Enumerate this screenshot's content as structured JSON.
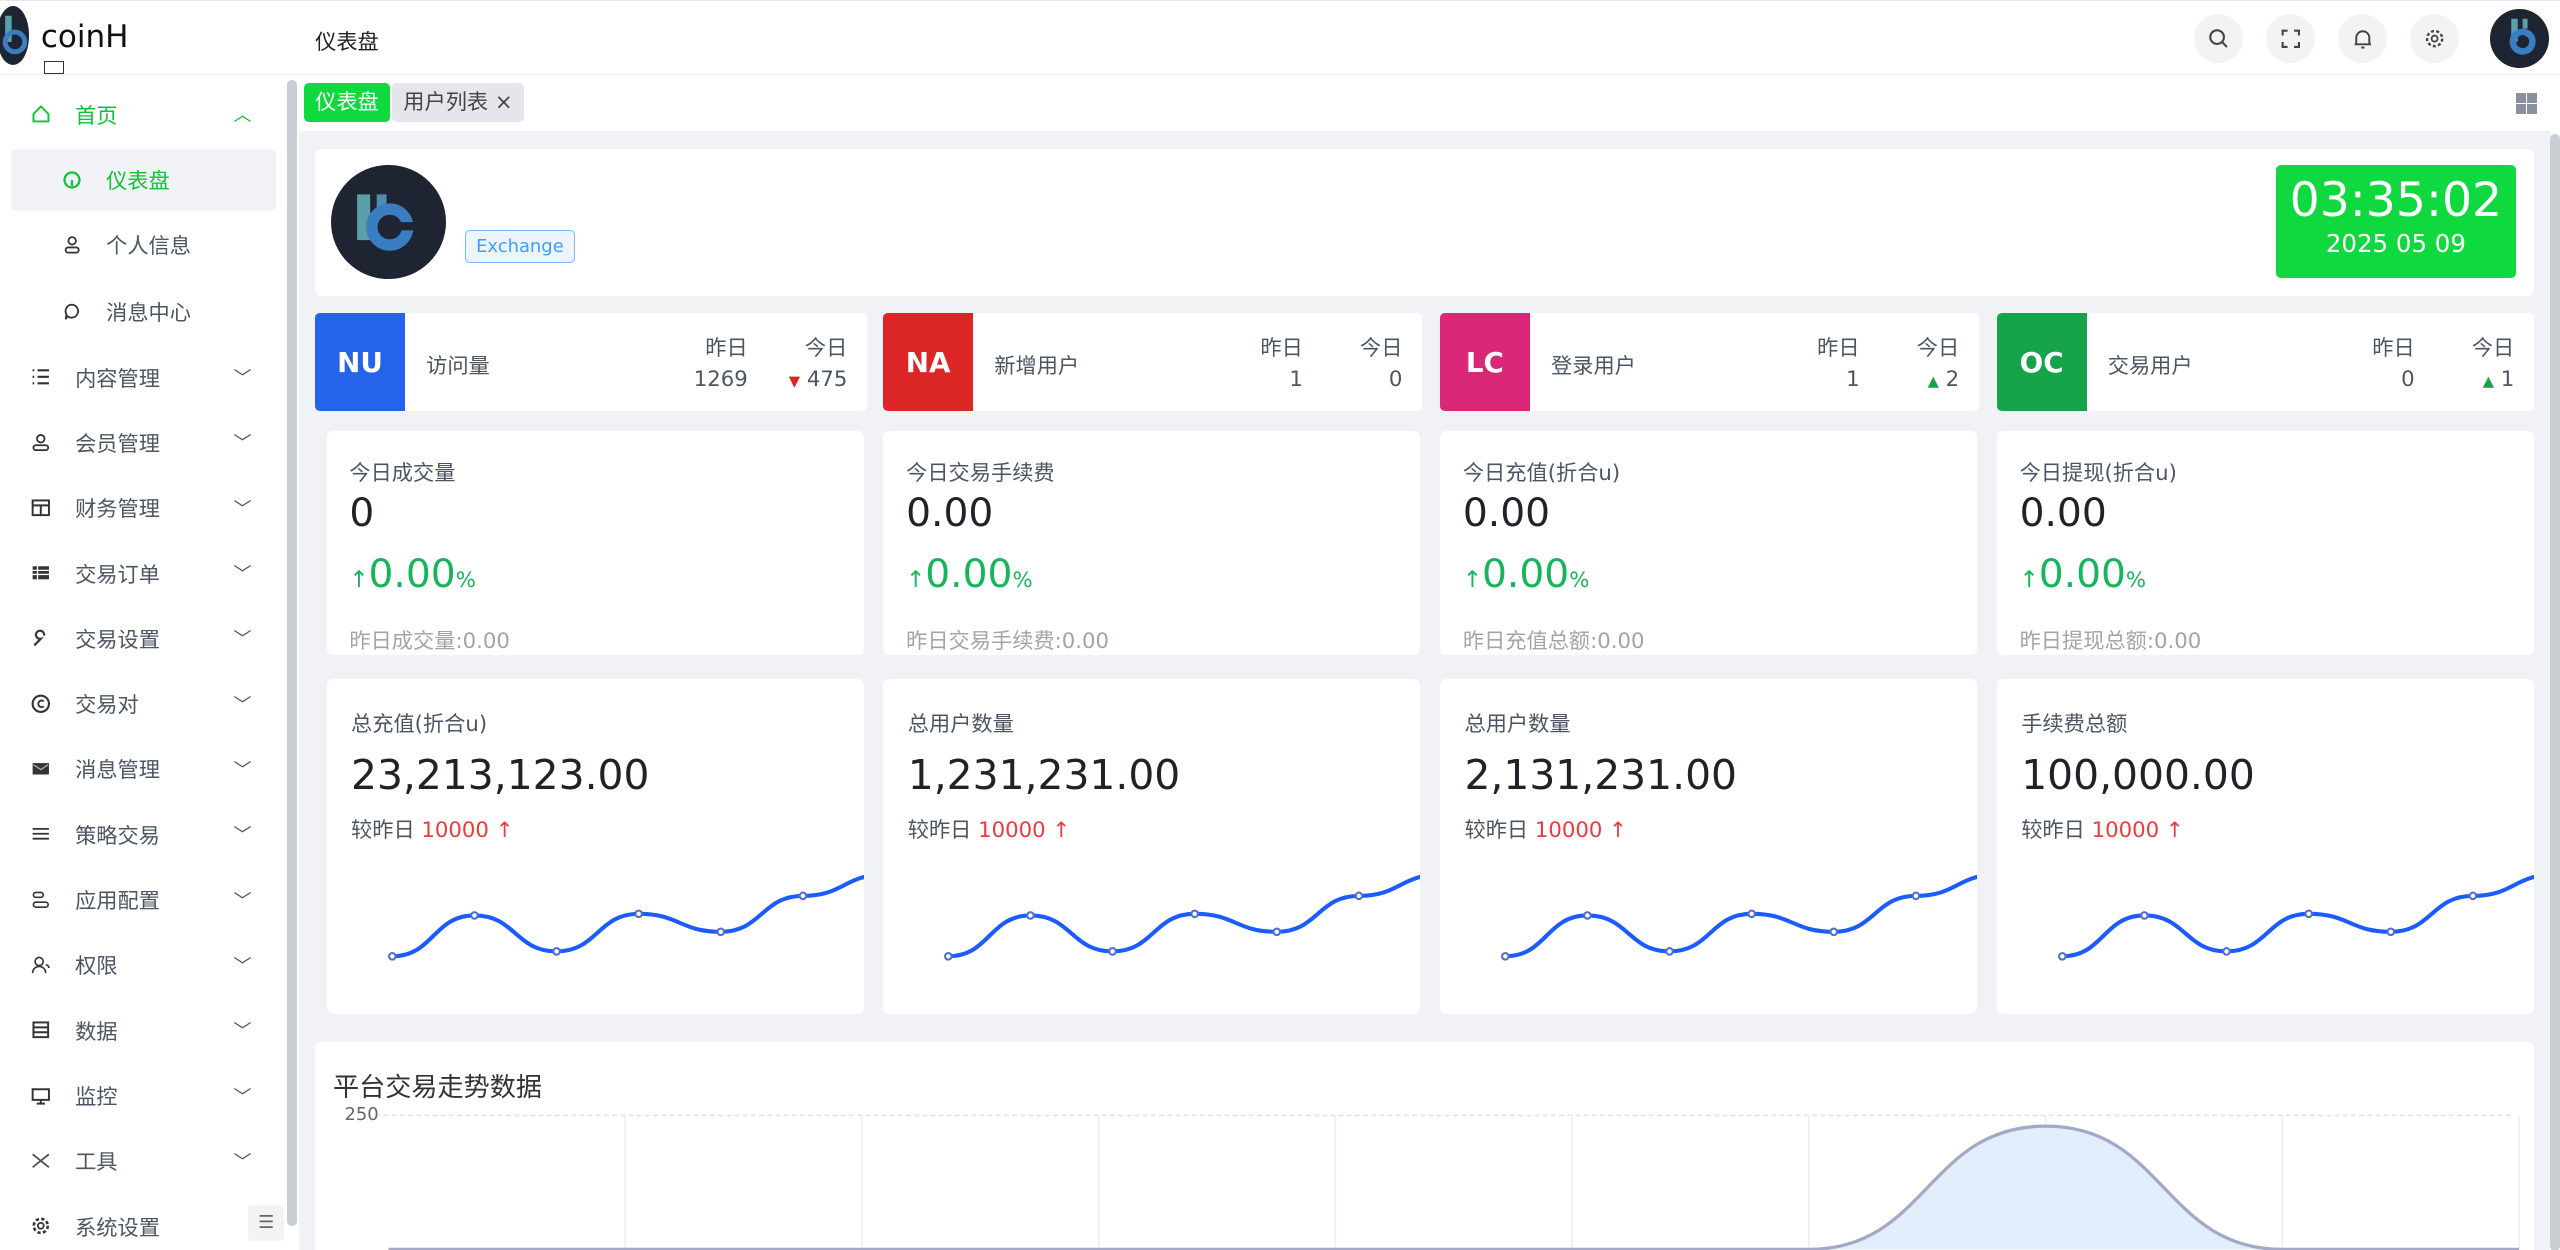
{
  "app": {
    "name": "coinH",
    "page_title": "仪表盘"
  },
  "header": {
    "icons": [
      "search-icon",
      "fullscreen-icon",
      "bell-icon",
      "gear-icon"
    ]
  },
  "sidebar": {
    "items": [
      {
        "label": "首页",
        "icon": "home-icon",
        "expanded": true,
        "children": [
          {
            "label": "仪表盘",
            "icon": "dashboard-icon",
            "active": true
          },
          {
            "label": "个人信息",
            "icon": "user-icon"
          },
          {
            "label": "消息中心",
            "icon": "message-icon"
          }
        ]
      },
      {
        "label": "内容管理",
        "icon": "list-icon"
      },
      {
        "label": "会员管理",
        "icon": "user-icon"
      },
      {
        "label": "财务管理",
        "icon": "layout-icon"
      },
      {
        "label": "交易订单",
        "icon": "table-icon"
      },
      {
        "label": "交易设置",
        "icon": "wrench-icon"
      },
      {
        "label": "交易对",
        "icon": "copyright-icon"
      },
      {
        "label": "消息管理",
        "icon": "mail-icon"
      },
      {
        "label": "策略交易",
        "icon": "menu-icon"
      },
      {
        "label": "应用配置",
        "icon": "config-icon"
      },
      {
        "label": "权限",
        "icon": "users-icon"
      },
      {
        "label": "数据",
        "icon": "database-icon"
      },
      {
        "label": "监控",
        "icon": "monitor-icon"
      },
      {
        "label": "工具",
        "icon": "tools-icon"
      },
      {
        "label": "系统设置",
        "icon": "gear-icon"
      }
    ]
  },
  "tabs": [
    {
      "label": "仪表盘",
      "active": true
    },
    {
      "label": "用户列表",
      "closable": true,
      "close": "×"
    }
  ],
  "welcome": {
    "tag": "Exchange",
    "time": "03:35:02",
    "date": "2025 05 09"
  },
  "stats": [
    {
      "badge": "NU",
      "color": "#2563eb",
      "label": "访问量",
      "yesterday_label": "昨日",
      "today_label": "今日",
      "yesterday": "1269",
      "today": "475",
      "trend": "down"
    },
    {
      "badge": "NA",
      "color": "#dc2626",
      "label": "新增用户",
      "yesterday_label": "昨日",
      "today_label": "今日",
      "yesterday": "1",
      "today": "0",
      "trend": "none"
    },
    {
      "badge": "LC",
      "color": "#db2777",
      "label": "登录用户",
      "yesterday_label": "昨日",
      "today_label": "今日",
      "yesterday": "1",
      "today": "2",
      "trend": "up"
    },
    {
      "badge": "OC",
      "color": "#16a34a",
      "label": "交易用户",
      "yesterday_label": "昨日",
      "today_label": "今日",
      "yesterday": "0",
      "today": "1",
      "trend": "up"
    }
  ],
  "kpis": [
    {
      "title": "今日成交量",
      "value": "0",
      "pct": "0.00",
      "pct_unit": "%",
      "yesterday": "昨日成交量:0.00"
    },
    {
      "title": "今日交易手续费",
      "value": "0.00",
      "pct": "0.00",
      "pct_unit": "%",
      "yesterday": "昨日交易手续费:0.00"
    },
    {
      "title": "今日充值(折合u)",
      "value": "0.00",
      "pct": "0.00",
      "pct_unit": "%",
      "yesterday": "昨日充值总额:0.00"
    },
    {
      "title": "今日提现(折合u)",
      "value": "0.00",
      "pct": "0.00",
      "pct_unit": "%",
      "yesterday": "昨日提现总额:0.00"
    }
  ],
  "totals": [
    {
      "title": "总充值(折合u)",
      "value": "23,213,123.00",
      "compare_label": "较昨日",
      "compare": "10000"
    },
    {
      "title": "总用户数量",
      "value": "1,231,231.00",
      "compare_label": "较昨日",
      "compare": "10000"
    },
    {
      "title": "总用户数量",
      "value": "2,131,231.00",
      "compare_label": "较昨日",
      "compare": "10000"
    },
    {
      "title": "手续费总额",
      "value": "100,000.00",
      "compare_label": "较昨日",
      "compare": "10000"
    }
  ],
  "colors": {
    "accent": "#0fd93f",
    "line": "#1a5cff",
    "up": "#16b55c",
    "down": "#f03a3a"
  },
  "chart_data": [
    {
      "type": "line",
      "values": [
        10,
        35,
        13,
        36,
        25,
        47,
        60
      ],
      "ylim": [
        0,
        60
      ]
    },
    {
      "type": "area",
      "title": "平台交易走势数据",
      "yticks": [
        250
      ],
      "ylim": [
        0,
        250
      ],
      "values": [
        0,
        0,
        0,
        0,
        0,
        0,
        0,
        230,
        0,
        0
      ],
      "grid": true
    }
  ]
}
